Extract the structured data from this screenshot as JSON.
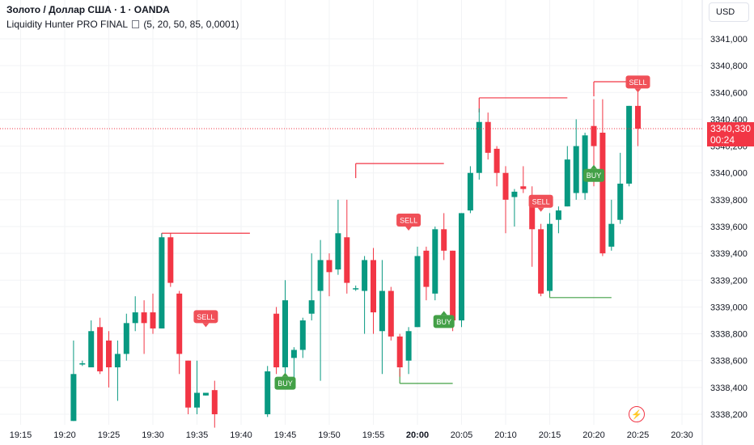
{
  "header": {
    "symbol_title": "Золото / Доллар США · 1 · OANDA",
    "indicator": "Liquidity Hunter PRO FINAL",
    "indicator_params": "(5, 20, 50, 85, 0,0001)"
  },
  "toolbar": {
    "currency_label": "USD"
  },
  "price_tag": {
    "price": "3340,330",
    "countdown": "00:24"
  },
  "colors": {
    "up": "#089981",
    "down": "#f23645",
    "buy": "#43a047",
    "sell": "#f05058"
  },
  "chart_data": {
    "type": "candlestick",
    "x_tick_labels": [
      "19:15",
      "19:20",
      "19:25",
      "19:30",
      "19:35",
      "19:40",
      "19:45",
      "19:50",
      "19:55",
      "20:00",
      "20:05",
      "20:10",
      "20:15",
      "20:20",
      "20:25",
      "20:30"
    ],
    "y_tick_labels": [
      "3341,000",
      "3340,800",
      "3340,600",
      "3340,400",
      "3340,200",
      "3340,000",
      "3339,800",
      "3339,600",
      "3339,400",
      "3339,200",
      "3339,000",
      "3338,800",
      "3338,600",
      "3338,400",
      "3338,200"
    ],
    "y_ticks": [
      3341.0,
      3340.8,
      3340.6,
      3340.4,
      3340.2,
      3340.0,
      3339.8,
      3339.6,
      3339.4,
      3339.2,
      3339.0,
      3338.8,
      3338.6,
      3338.4,
      3338.2
    ],
    "ylim": [
      3338.1,
      3341.2
    ],
    "current_price": 3340.33,
    "candles": [
      {
        "t": "19:21",
        "o": 3338.15,
        "h": 3338.75,
        "l": 3338.15,
        "c": 3338.5
      },
      {
        "t": "19:22",
        "o": 3338.58,
        "h": 3338.6,
        "l": 3338.56,
        "c": 3338.58
      },
      {
        "t": "19:23",
        "o": 3338.55,
        "h": 3338.9,
        "l": 3338.55,
        "c": 3338.82
      },
      {
        "t": "19:24",
        "o": 3338.85,
        "h": 3338.92,
        "l": 3338.5,
        "c": 3338.52
      },
      {
        "t": "19:25",
        "o": 3338.75,
        "h": 3338.82,
        "l": 3338.4,
        "c": 3338.55
      },
      {
        "t": "19:26",
        "o": 3338.55,
        "h": 3338.75,
        "l": 3338.3,
        "c": 3338.65
      },
      {
        "t": "19:27",
        "o": 3338.65,
        "h": 3338.95,
        "l": 3338.6,
        "c": 3338.88
      },
      {
        "t": "19:28",
        "o": 3338.88,
        "h": 3339.08,
        "l": 3338.82,
        "c": 3338.96
      },
      {
        "t": "19:29",
        "o": 3338.96,
        "h": 3339.05,
        "l": 3338.65,
        "c": 3338.88
      },
      {
        "t": "19:30",
        "o": 3338.96,
        "h": 3339.1,
        "l": 3338.8,
        "c": 3338.84
      },
      {
        "t": "19:31",
        "o": 3338.84,
        "h": 3339.55,
        "l": 3338.84,
        "c": 3339.52
      },
      {
        "t": "19:32",
        "o": 3339.52,
        "h": 3339.55,
        "l": 3339.15,
        "c": 3339.18
      },
      {
        "t": "19:33",
        "o": 3339.1,
        "h": 3339.12,
        "l": 3338.5,
        "c": 3338.65
      },
      {
        "t": "19:34",
        "o": 3338.6,
        "h": 3338.6,
        "l": 3338.2,
        "c": 3338.25
      },
      {
        "t": "19:35",
        "o": 3338.25,
        "h": 3338.6,
        "l": 3338.2,
        "c": 3338.36
      },
      {
        "t": "19:36",
        "o": 3338.34,
        "h": 3338.36,
        "l": 3338.34,
        "c": 3338.36
      },
      {
        "t": "19:37",
        "o": 3338.38,
        "h": 3338.45,
        "l": 3338.1,
        "c": 3338.2
      },
      {
        "t": "19:43",
        "o": 3338.2,
        "h": 3338.56,
        "l": 3338.18,
        "c": 3338.52
      },
      {
        "t": "19:44",
        "o": 3338.95,
        "h": 3339.0,
        "l": 3338.5,
        "c": 3338.55
      },
      {
        "t": "19:45",
        "o": 3338.55,
        "h": 3339.2,
        "l": 3338.5,
        "c": 3339.05
      },
      {
        "t": "19:46",
        "o": 3338.62,
        "h": 3338.7,
        "l": 3338.45,
        "c": 3338.68
      },
      {
        "t": "19:47",
        "o": 3338.68,
        "h": 3338.92,
        "l": 3338.62,
        "c": 3338.9
      },
      {
        "t": "19:48",
        "o": 3338.95,
        "h": 3339.4,
        "l": 3338.9,
        "c": 3339.05
      },
      {
        "t": "19:49",
        "o": 3339.12,
        "h": 3339.5,
        "l": 3338.45,
        "c": 3339.35
      },
      {
        "t": "19:50",
        "o": 3339.35,
        "h": 3339.4,
        "l": 3339.08,
        "c": 3339.26
      },
      {
        "t": "19:51",
        "o": 3339.28,
        "h": 3339.8,
        "l": 3339.24,
        "c": 3339.55
      },
      {
        "t": "19:52",
        "o": 3339.52,
        "h": 3339.8,
        "l": 3339.1,
        "c": 3339.18
      },
      {
        "t": "19:53",
        "o": 3339.14,
        "h": 3339.16,
        "l": 3339.12,
        "c": 3339.14
      },
      {
        "t": "19:54",
        "o": 3339.12,
        "h": 3339.38,
        "l": 3338.8,
        "c": 3339.35
      },
      {
        "t": "19:55",
        "o": 3339.35,
        "h": 3339.44,
        "l": 3338.8,
        "c": 3338.96
      },
      {
        "t": "19:56",
        "o": 3338.82,
        "h": 3339.35,
        "l": 3338.5,
        "c": 3339.12
      },
      {
        "t": "19:57",
        "o": 3339.12,
        "h": 3339.15,
        "l": 3338.75,
        "c": 3338.78
      },
      {
        "t": "19:58",
        "o": 3338.78,
        "h": 3338.8,
        "l": 3338.48,
        "c": 3338.55
      },
      {
        "t": "19:59",
        "o": 3338.6,
        "h": 3338.85,
        "l": 3338.5,
        "c": 3338.82
      },
      {
        "t": "20:00",
        "o": 3338.85,
        "h": 3339.45,
        "l": 3338.85,
        "c": 3339.38
      },
      {
        "t": "20:01",
        "o": 3339.42,
        "h": 3339.45,
        "l": 3339.05,
        "c": 3339.15
      },
      {
        "t": "20:02",
        "o": 3339.1,
        "h": 3339.6,
        "l": 3339.05,
        "c": 3339.58
      },
      {
        "t": "20:03",
        "o": 3339.58,
        "h": 3339.7,
        "l": 3339.35,
        "c": 3339.42
      },
      {
        "t": "20:04",
        "o": 3339.42,
        "h": 3339.42,
        "l": 3338.82,
        "c": 3338.9
      },
      {
        "t": "20:05",
        "o": 3338.9,
        "h": 3339.7,
        "l": 3338.85,
        "c": 3339.7
      },
      {
        "t": "20:06",
        "o": 3339.72,
        "h": 3340.05,
        "l": 3339.7,
        "c": 3340.0
      },
      {
        "t": "20:07",
        "o": 3340.0,
        "h": 3340.48,
        "l": 3339.95,
        "c": 3340.38
      },
      {
        "t": "20:08",
        "o": 3340.38,
        "h": 3340.45,
        "l": 3340.1,
        "c": 3340.15
      },
      {
        "t": "20:09",
        "o": 3340.18,
        "h": 3340.2,
        "l": 3339.9,
        "c": 3340.0
      },
      {
        "t": "20:10",
        "o": 3340.0,
        "h": 3340.05,
        "l": 3339.55,
        "c": 3339.8
      },
      {
        "t": "20:11",
        "o": 3339.82,
        "h": 3339.88,
        "l": 3339.6,
        "c": 3339.86
      },
      {
        "t": "20:12",
        "o": 3339.9,
        "h": 3340.05,
        "l": 3339.85,
        "c": 3339.88
      },
      {
        "t": "20:13",
        "o": 3339.82,
        "h": 3339.9,
        "l": 3339.3,
        "c": 3339.58
      },
      {
        "t": "20:14",
        "o": 3339.58,
        "h": 3339.62,
        "l": 3339.08,
        "c": 3339.1
      },
      {
        "t": "20:15",
        "o": 3339.12,
        "h": 3339.7,
        "l": 3339.1,
        "c": 3339.62
      },
      {
        "t": "20:16",
        "o": 3339.65,
        "h": 3339.75,
        "l": 3339.55,
        "c": 3339.72
      },
      {
        "t": "20:17",
        "o": 3339.75,
        "h": 3340.2,
        "l": 3339.75,
        "c": 3340.1
      },
      {
        "t": "20:18",
        "o": 3339.85,
        "h": 3340.4,
        "l": 3339.8,
        "c": 3340.2
      },
      {
        "t": "20:19",
        "o": 3339.85,
        "h": 3340.3,
        "l": 3339.8,
        "c": 3340.28
      },
      {
        "t": "20:20",
        "o": 3340.35,
        "h": 3340.55,
        "l": 3339.9,
        "c": 3340.2
      },
      {
        "t": "20:21",
        "o": 3340.3,
        "h": 3340.55,
        "l": 3339.38,
        "c": 3339.4
      },
      {
        "t": "20:22",
        "o": 3339.45,
        "h": 3339.8,
        "l": 3339.42,
        "c": 3339.62
      },
      {
        "t": "20:23",
        "o": 3339.65,
        "h": 3340.15,
        "l": 3339.62,
        "c": 3339.92
      },
      {
        "t": "20:24",
        "o": 3339.92,
        "h": 3340.5,
        "l": 3339.9,
        "c": 3340.5
      },
      {
        "t": "20:25",
        "o": 3340.5,
        "h": 3340.62,
        "l": 3340.2,
        "c": 3340.33
      }
    ],
    "level_lines": [
      {
        "kind": "resistance",
        "from": "19:31",
        "to": "19:41",
        "price": 3339.55
      },
      {
        "kind": "resistance",
        "from": "19:53",
        "to": "20:03",
        "price": 3340.07
      },
      {
        "kind": "resistance",
        "from": "20:07",
        "to": "20:17",
        "price": 3340.56
      },
      {
        "kind": "resistance",
        "from": "20:20",
        "to": "20:25",
        "price": 3340.68
      },
      {
        "kind": "support",
        "from": "19:58",
        "to": "20:04",
        "price": 3338.43
      },
      {
        "kind": "support",
        "from": "20:15",
        "to": "20:22",
        "price": 3339.07
      }
    ],
    "signals": [
      {
        "label": "SELL",
        "at": "19:36",
        "price": 3338.88
      },
      {
        "label": "BUY",
        "at": "19:45",
        "price": 3338.48
      },
      {
        "label": "SELL",
        "at": "19:59",
        "price": 3339.6
      },
      {
        "label": "BUY",
        "at": "20:03",
        "price": 3338.94
      },
      {
        "label": "SELL",
        "at": "20:14",
        "price": 3339.74
      },
      {
        "label": "BUY",
        "at": "20:20",
        "price": 3340.03
      },
      {
        "label": "SELL",
        "at": "20:25",
        "price": 3340.63
      }
    ]
  }
}
